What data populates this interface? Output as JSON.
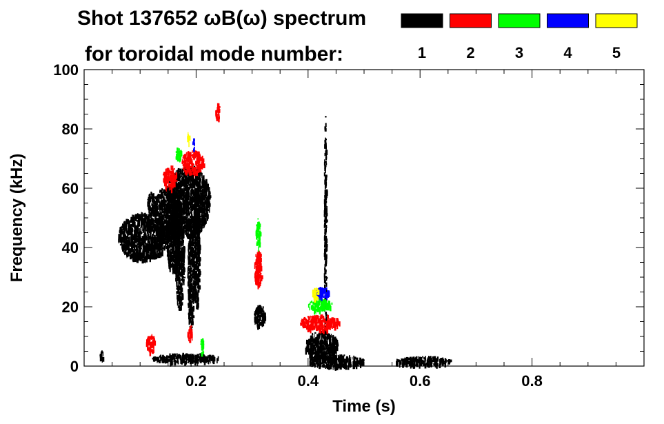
{
  "chart_data": {
    "type": "heatmap",
    "title": "Shot 137652 ωB(ω) spectrum",
    "legend_title": "for toroidal mode number:",
    "legend": [
      {
        "label": "1",
        "color": "#000000"
      },
      {
        "label": "2",
        "color": "#ff0000"
      },
      {
        "label": "3",
        "color": "#00ff00"
      },
      {
        "label": "4",
        "color": "#0000ff"
      },
      {
        "label": "5",
        "color": "#ffff00"
      }
    ],
    "xlabel": "Time (s)",
    "ylabel": "Frequency (kHz)",
    "xlim": [
      0.0,
      1.0
    ],
    "ylim": [
      0,
      100
    ],
    "xticks": [
      0.2,
      0.4,
      0.6,
      0.8
    ],
    "xtick_labels": [
      "0.2",
      "0.4",
      "0.6",
      "0.8"
    ],
    "yticks": [
      0,
      20,
      40,
      60,
      80,
      100
    ],
    "ytick_labels": [
      "0",
      "20",
      "40",
      "60",
      "80",
      "100"
    ],
    "grid": false,
    "regions": [
      {
        "mode": 1,
        "t": 0.03,
        "f": 4,
        "dt": 0.004,
        "df": 1.5
      },
      {
        "mode": 1,
        "t": 0.105,
        "f": 44,
        "dt": 0.045,
        "df": 8
      },
      {
        "mode": 1,
        "t": 0.12,
        "f": 55,
        "dt": 0.008,
        "df": 4
      },
      {
        "mode": 1,
        "t": 0.148,
        "f": 52,
        "dt": 0.025,
        "df": 9
      },
      {
        "mode": 1,
        "t": 0.158,
        "f": 42,
        "dt": 0.012,
        "df": 10
      },
      {
        "mode": 1,
        "t": 0.185,
        "f": 56,
        "dt": 0.04,
        "df": 12
      },
      {
        "mode": 1,
        "t": 0.17,
        "f": 35,
        "dt": 0.008,
        "df": 15
      },
      {
        "mode": 1,
        "t": 0.19,
        "f": 30,
        "dt": 0.006,
        "df": 18
      },
      {
        "mode": 1,
        "t": 0.2,
        "f": 40,
        "dt": 0.006,
        "df": 20
      },
      {
        "mode": 1,
        "t": 0.18,
        "f": 3,
        "dt": 0.06,
        "df": 1.5
      },
      {
        "mode": 1,
        "t": 0.313,
        "f": 17,
        "dt": 0.01,
        "df": 4
      },
      {
        "mode": 1,
        "t": 0.423,
        "f": 7,
        "dt": 0.03,
        "df": 5
      },
      {
        "mode": 1,
        "t": 0.45,
        "f": 2,
        "dt": 0.05,
        "df": 2
      },
      {
        "mode": 1,
        "t": 0.605,
        "f": 2,
        "dt": 0.05,
        "df": 1.5
      },
      {
        "mode": 1,
        "t": 0.43,
        "f": 45,
        "dt": 0.002,
        "df": 40
      },
      {
        "mode": 2,
        "t": 0.118,
        "f": 8,
        "dt": 0.008,
        "df": 3
      },
      {
        "mode": 2,
        "t": 0.152,
        "f": 64,
        "dt": 0.012,
        "df": 4
      },
      {
        "mode": 2,
        "t": 0.193,
        "f": 69,
        "dt": 0.02,
        "df": 4
      },
      {
        "mode": 2,
        "t": 0.238,
        "f": 86,
        "dt": 0.004,
        "df": 3
      },
      {
        "mode": 2,
        "t": 0.31,
        "f": 33,
        "dt": 0.007,
        "df": 6
      },
      {
        "mode": 2,
        "t": 0.42,
        "f": 15,
        "dt": 0.035,
        "df": 2.5
      },
      {
        "mode": 2,
        "t": 0.188,
        "f": 11,
        "dt": 0.004,
        "df": 3
      },
      {
        "mode": 3,
        "t": 0.168,
        "f": 72,
        "dt": 0.006,
        "df": 2
      },
      {
        "mode": 3,
        "t": 0.31,
        "f": 45,
        "dt": 0.004,
        "df": 5
      },
      {
        "mode": 3,
        "t": 0.42,
        "f": 21,
        "dt": 0.022,
        "df": 2
      },
      {
        "mode": 3,
        "t": 0.21,
        "f": 7,
        "dt": 0.003,
        "df": 3
      },
      {
        "mode": 4,
        "t": 0.195,
        "f": 75,
        "dt": 0.002,
        "df": 2
      },
      {
        "mode": 4,
        "t": 0.425,
        "f": 25,
        "dt": 0.012,
        "df": 2
      },
      {
        "mode": 5,
        "t": 0.185,
        "f": 77,
        "dt": 0.002,
        "df": 2
      },
      {
        "mode": 5,
        "t": 0.412,
        "f": 25,
        "dt": 0.006,
        "df": 2
      }
    ]
  }
}
